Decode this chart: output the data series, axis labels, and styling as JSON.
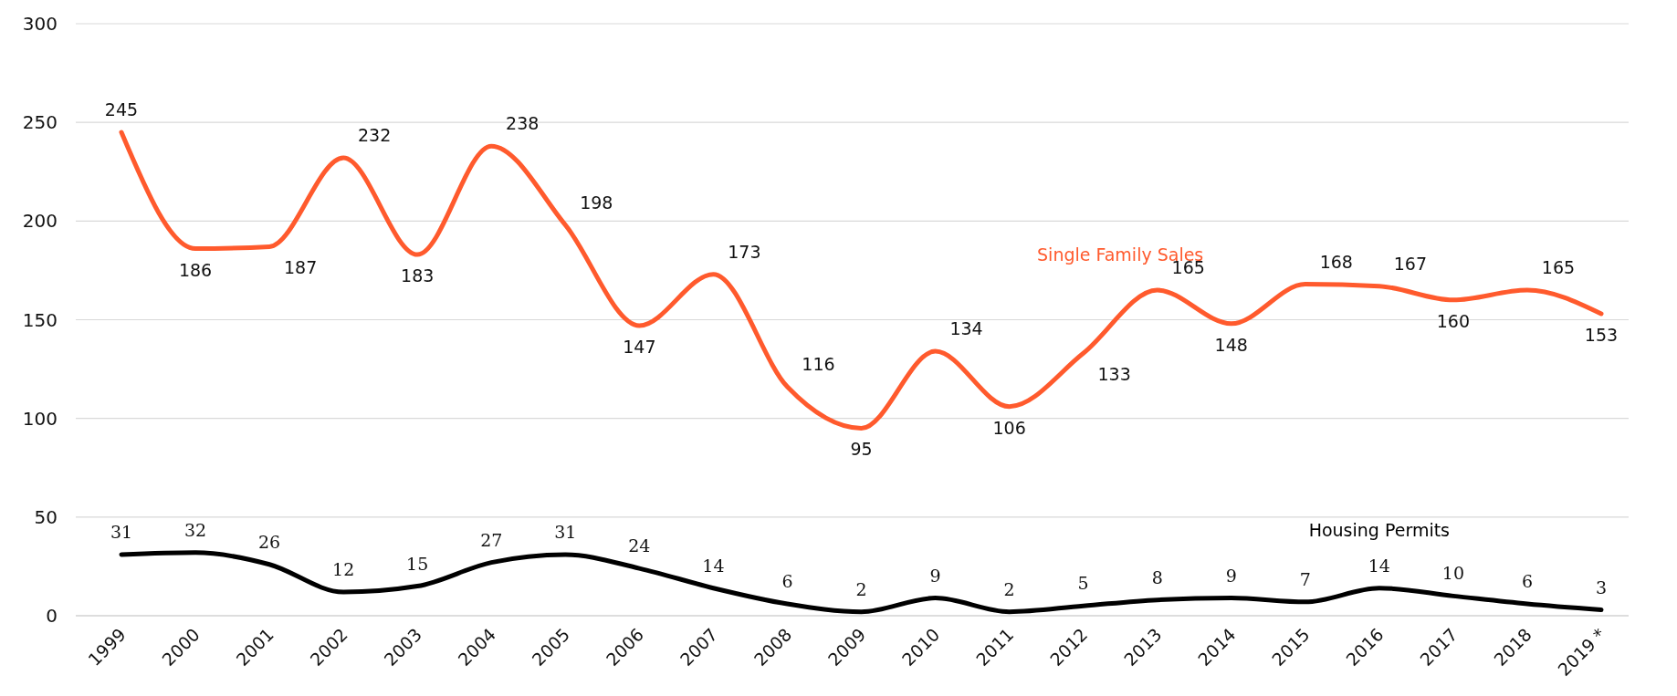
{
  "chart_data": {
    "type": "line",
    "categories": [
      "1999",
      "2000",
      "2001",
      "2002",
      "2003",
      "2004",
      "2005",
      "2006",
      "2007",
      "2008",
      "2009",
      "2010",
      "2011",
      "2012",
      "2013",
      "2014",
      "2015",
      "2016",
      "2017",
      "2018",
      "2019 *"
    ],
    "series": [
      {
        "name": "Single Family Sales",
        "color": "#ff5a2d",
        "values": [
          245,
          186,
          187,
          232,
          183,
          238,
          198,
          147,
          173,
          116,
          95,
          134,
          106,
          133,
          165,
          148,
          168,
          167,
          160,
          165,
          153
        ]
      },
      {
        "name": "Housing Permits",
        "color": "#000000",
        "values": [
          31,
          32,
          26,
          12,
          15,
          27,
          31,
          24,
          14,
          6,
          2,
          9,
          2,
          5,
          8,
          9,
          7,
          14,
          10,
          6,
          3
        ]
      }
    ],
    "ylim": [
      0,
      300
    ],
    "yticks": [
      0,
      50,
      100,
      150,
      200,
      250,
      300
    ],
    "grid": "y",
    "data_labels": true,
    "legend": false,
    "marker": "none",
    "line_style": "solid"
  }
}
